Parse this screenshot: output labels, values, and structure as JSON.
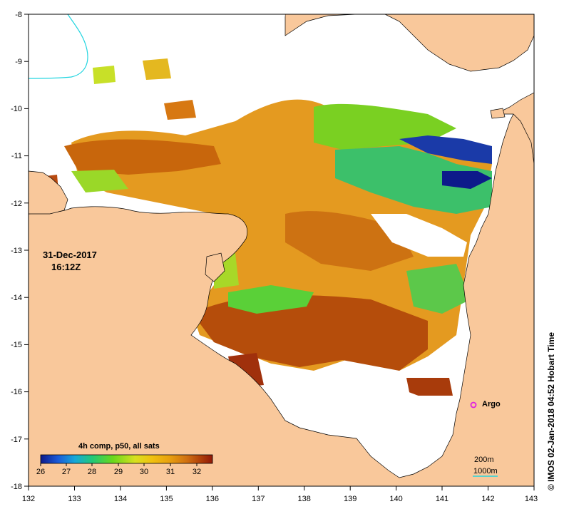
{
  "map": {
    "lon_ticks": [
      "132",
      "133",
      "134",
      "135",
      "136",
      "137",
      "138",
      "139",
      "140",
      "141",
      "142",
      "143"
    ],
    "lat_ticks": [
      "-8",
      "-9",
      "-10",
      "-11",
      "-12",
      "-13",
      "-14",
      "-15",
      "-16",
      "-17",
      "-18"
    ],
    "colors": {
      "land": "#f9c89b",
      "no_data": "#ffffff",
      "coast": "#000000",
      "cyan_line": "#22d5e0",
      "argo": "#e020e0"
    }
  },
  "annotation": {
    "date": "31-Dec-2017",
    "time": "16:12Z"
  },
  "legend": {
    "title": "4h comp, p50, all sats",
    "ticks": [
      "26",
      "27",
      "28",
      "29",
      "30",
      "31",
      "32"
    ],
    "colors": [
      "#0d1a8a",
      "#1a5ad8",
      "#16a8d8",
      "#22c878",
      "#6ad81c",
      "#d8e020",
      "#f0c010",
      "#e8a010",
      "#d07010",
      "#b04008",
      "#901808"
    ]
  },
  "argo": {
    "label": "Argo"
  },
  "scale": {
    "line1": "200m",
    "line2": "1000m"
  },
  "footer": {
    "vertical_text": "© IMOS 02-Jan-2018 04:52 Hobart Time"
  }
}
